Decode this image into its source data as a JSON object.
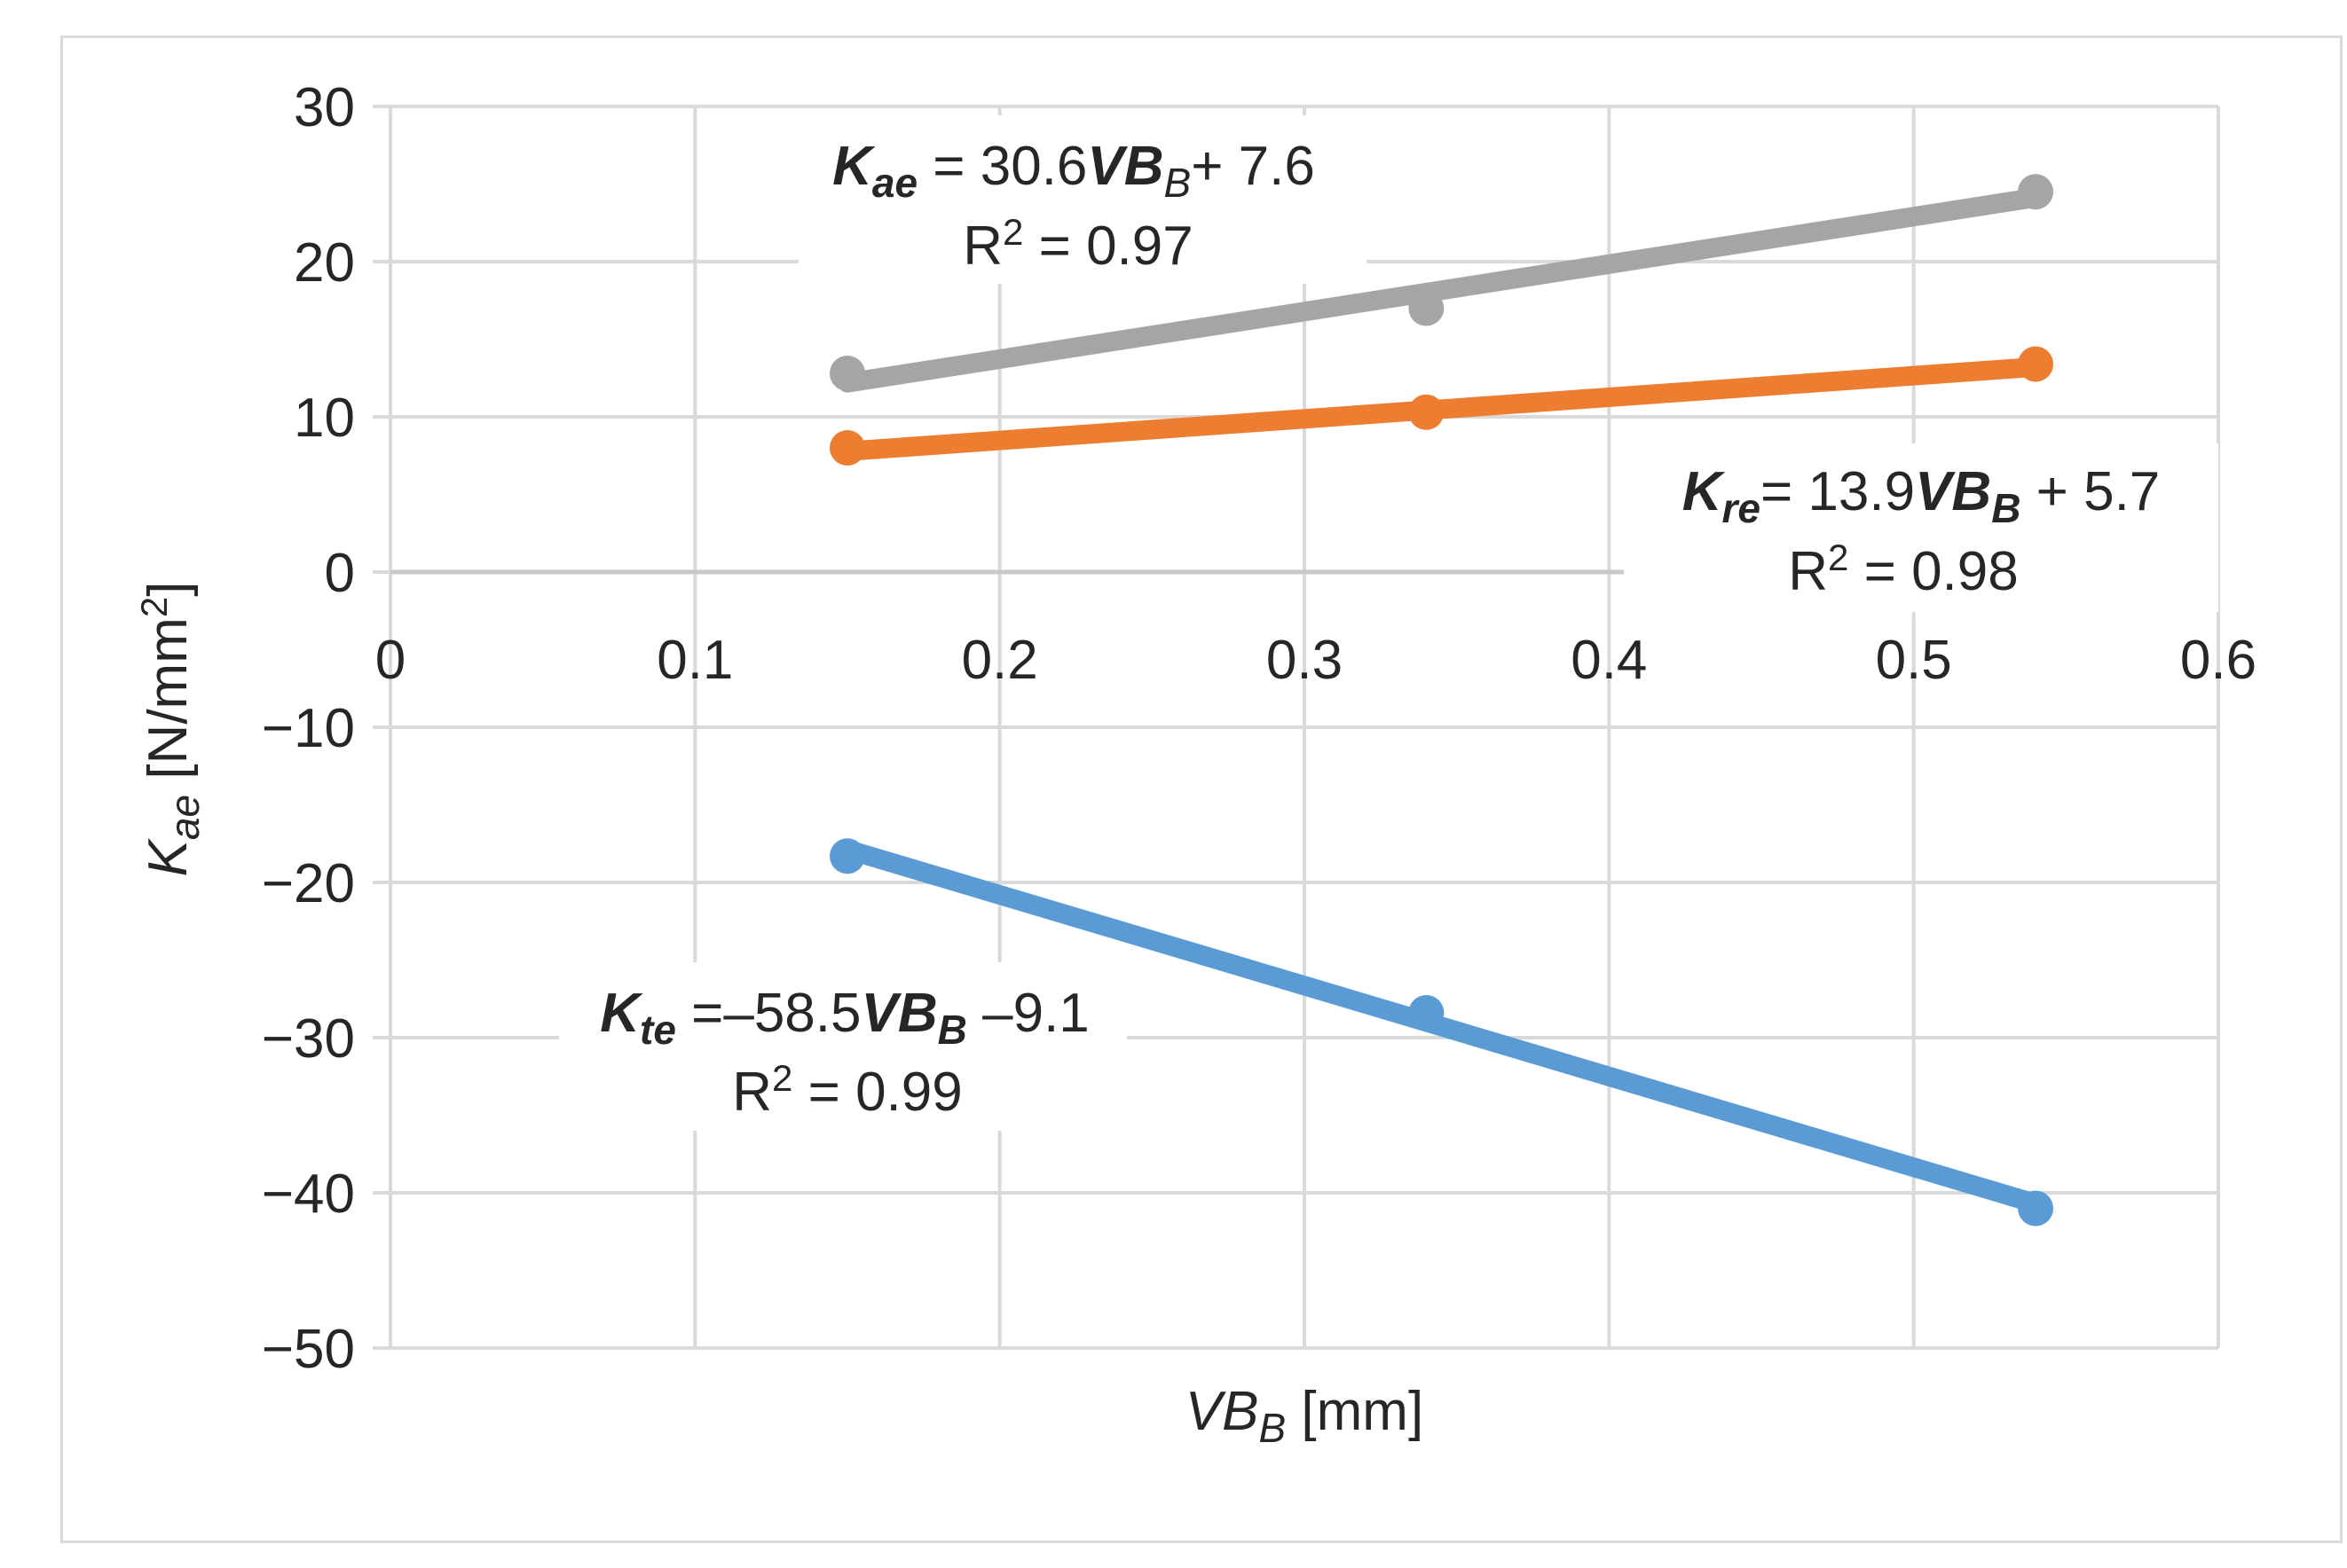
{
  "chart_data": {
    "type": "scatter",
    "xlabel": {
      "var": "VB",
      "sub": "B",
      "unit": " [mm]"
    },
    "ylabel": {
      "var": "K",
      "sub": "ae",
      "unit": " [N/mm",
      "sup": "2",
      "close": "]"
    },
    "xlim": [
      0,
      0.6
    ],
    "ylim": [
      -50,
      30
    ],
    "xticks": [
      0,
      0.1,
      0.2,
      0.3,
      0.4,
      0.5,
      0.6
    ],
    "xtick_labels": [
      "0",
      "0.1",
      "0.2",
      "0.3",
      "0.4",
      "0.5",
      "0.6"
    ],
    "yticks": [
      30,
      20,
      10,
      0,
      -10,
      -20,
      -30,
      -40,
      -50
    ],
    "ytick_labels": [
      "30",
      "20",
      "10",
      "0",
      "−10",
      "−20",
      "−30",
      "−40",
      "−50"
    ],
    "grid": true,
    "series": [
      {
        "name": "Kae",
        "color": "#a5a5a5",
        "x": [
          0.15,
          0.34,
          0.54
        ],
        "y": [
          12.8,
          17.0,
          24.5
        ],
        "trend": {
          "slope": 30.6,
          "intercept": 7.6
        },
        "equation": {
          "var": "K",
          "sub": "ae",
          "mid": " = 30.6",
          "vb": "VB",
          "vbsub": "B",
          "tail": "+ 7.6"
        },
        "r2": {
          "pre": "R",
          "sup": "2",
          "post": " = 0.97"
        }
      },
      {
        "name": "Kre",
        "color": "#ed7d31",
        "x": [
          0.15,
          0.34,
          0.54
        ],
        "y": [
          8.0,
          10.3,
          13.4
        ],
        "trend": {
          "slope": 13.9,
          "intercept": 5.7
        },
        "equation": {
          "var": "K",
          "sub": "re",
          "mid": "= 13.9",
          "vb": "VB",
          "vbsub": "B",
          "tail": " + 5.7"
        },
        "r2": {
          "pre": "R",
          "sup": "2",
          "post": " = 0.98"
        }
      },
      {
        "name": "Kte",
        "color": "#5b9bd5",
        "x": [
          0.15,
          0.34,
          0.54
        ],
        "y": [
          -18.3,
          -28.4,
          -41.0
        ],
        "trend": {
          "slope": -58.5,
          "intercept": -9.1
        },
        "equation": {
          "var": "K",
          "sub": "te",
          "mid": " =–58.5",
          "vb": "VB",
          "vbsub": "B",
          "tail": " –9.1"
        },
        "r2": {
          "pre": "R",
          "sup": "2",
          "post": " = 0.99"
        }
      }
    ]
  }
}
